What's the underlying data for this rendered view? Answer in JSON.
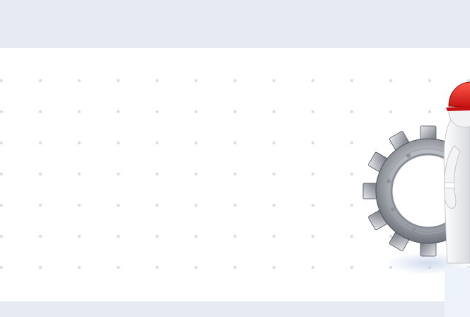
{
  "page": {
    "background": "#ffffff",
    "band_color": "#e6eaf3",
    "dot_color": "#d9dde5"
  },
  "illustration": {
    "icon": "maintenance-worker-with-gear-icon",
    "helmet_color": "#e02020",
    "gear_color": "#b8bcc2"
  }
}
